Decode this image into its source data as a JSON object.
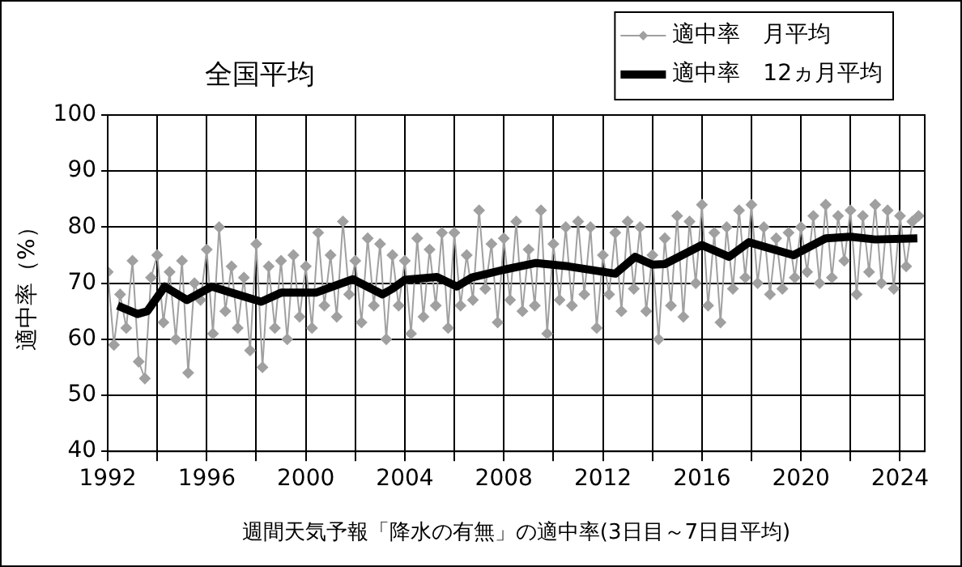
{
  "chart_data": {
    "type": "line",
    "title": "全国平均",
    "xlabel": "週間天気予報「降水の有無」の適中率(3日目～7日目平均)",
    "ylabel": "適中率（%）",
    "xlim": [
      1992,
      2025
    ],
    "ylim": [
      40,
      100
    ],
    "xticks": [
      1992,
      {
        "value": 1994,
        "label": null
      },
      1996,
      {
        "value": 1998,
        "label": null
      },
      2000,
      {
        "value": 2002,
        "label": null
      },
      2004,
      {
        "value": 2006,
        "label": null
      },
      2008,
      {
        "value": 2010,
        "label": null
      },
      2012,
      {
        "value": 2014,
        "label": null
      },
      2016,
      {
        "value": 2018,
        "label": null
      },
      2020,
      {
        "value": 2022,
        "label": null
      },
      2024
    ],
    "yticks": [
      40,
      50,
      60,
      70,
      80,
      90,
      100
    ],
    "grid": true,
    "legend": "top right",
    "series": [
      {
        "name": "適中率　月平均",
        "color": "#a0a0a0",
        "marker": "diamond",
        "x": [
          1992,
          1992.25,
          1992.5,
          1992.75,
          1993,
          1993.25,
          1993.5,
          1993.75,
          1994,
          1994.25,
          1994.5,
          1994.75,
          1995,
          1995.25,
          1995.5,
          1995.75,
          1996,
          1996.25,
          1996.5,
          1996.75,
          1997,
          1997.25,
          1997.5,
          1997.75,
          1998,
          1998.25,
          1998.5,
          1998.75,
          1999,
          1999.25,
          1999.5,
          1999.75,
          2000,
          2000.25,
          2000.5,
          2000.75,
          2001,
          2001.25,
          2001.5,
          2001.75,
          2002,
          2002.25,
          2002.5,
          2002.75,
          2003,
          2003.25,
          2003.5,
          2003.75,
          2004,
          2004.25,
          2004.5,
          2004.75,
          2005,
          2005.25,
          2005.5,
          2005.75,
          2006,
          2006.25,
          2006.5,
          2006.75,
          2007,
          2007.25,
          2007.5,
          2007.75,
          2008,
          2008.25,
          2008.5,
          2008.75,
          2009,
          2009.25,
          2009.5,
          2009.75,
          2010,
          2010.25,
          2010.5,
          2010.75,
          2011,
          2011.25,
          2011.5,
          2011.75,
          2012,
          2012.25,
          2012.5,
          2012.75,
          2013,
          2013.25,
          2013.5,
          2013.75,
          2014,
          2014.25,
          2014.5,
          2014.75,
          2015,
          2015.25,
          2015.5,
          2015.75,
          2016,
          2016.25,
          2016.5,
          2016.75,
          2017,
          2017.25,
          2017.5,
          2017.75,
          2018,
          2018.25,
          2018.5,
          2018.75,
          2019,
          2019.25,
          2019.5,
          2019.75,
          2020,
          2020.25,
          2020.5,
          2020.75,
          2021,
          2021.25,
          2021.5,
          2021.75,
          2022,
          2022.25,
          2022.5,
          2022.75,
          2023,
          2023.25,
          2023.5,
          2023.75,
          2024,
          2024.25,
          2024.5,
          2024.75
        ],
        "values": [
          72,
          59,
          68,
          62,
          74,
          56,
          53,
          71,
          75,
          63,
          72,
          60,
          74,
          54,
          70,
          67,
          76,
          61,
          80,
          65,
          73,
          62,
          71,
          58,
          77,
          55,
          73,
          62,
          74,
          60,
          75,
          64,
          73,
          62,
          79,
          66,
          75,
          64,
          81,
          68,
          74,
          63,
          78,
          66,
          77,
          60,
          75,
          66,
          74,
          61,
          78,
          64,
          76,
          66,
          79,
          62,
          79,
          66,
          75,
          67,
          83,
          69,
          77,
          63,
          78,
          67,
          81,
          65,
          76,
          66,
          83,
          61,
          77,
          67,
          80,
          66,
          81,
          68,
          80,
          62,
          75,
          68,
          79,
          65,
          81,
          69,
          80,
          65,
          75,
          60,
          78,
          66,
          82,
          64,
          81,
          70,
          84,
          66,
          79,
          63,
          80,
          69,
          83,
          71,
          84,
          70,
          80,
          68,
          78,
          69,
          79,
          71,
          80,
          72,
          82,
          70,
          84,
          71,
          82,
          74,
          83,
          68,
          82,
          72,
          84,
          70,
          83,
          69,
          82,
          73,
          81,
          82
        ]
      },
      {
        "name": "適中率　12ヵ月平均",
        "color": "#000000",
        "marker": "none",
        "x": [
          1992.4,
          1993.2,
          1993.6,
          1994.3,
          1995.2,
          1996.2,
          1997,
          1998.2,
          1999,
          2000.4,
          2001.9,
          2003.1,
          2003.5,
          2004,
          2005.3,
          2006.1,
          2006.7,
          2008,
          2009.3,
          2010.6,
          2012.5,
          2013.3,
          2014,
          2014.5,
          2016,
          2017.1,
          2017.9,
          2019.7,
          2021,
          2022,
          2023,
          2024.7
        ],
        "values": [
          66,
          64.5,
          65,
          69.4,
          67,
          69.4,
          68.3,
          66.7,
          68.3,
          68.3,
          70.7,
          68,
          69,
          70.6,
          71.1,
          69.4,
          71,
          72.4,
          73.6,
          73,
          71.7,
          74.7,
          73.3,
          73.4,
          76.8,
          74.7,
          77.3,
          75,
          78,
          78.3,
          77.8,
          78
        ]
      }
    ]
  }
}
